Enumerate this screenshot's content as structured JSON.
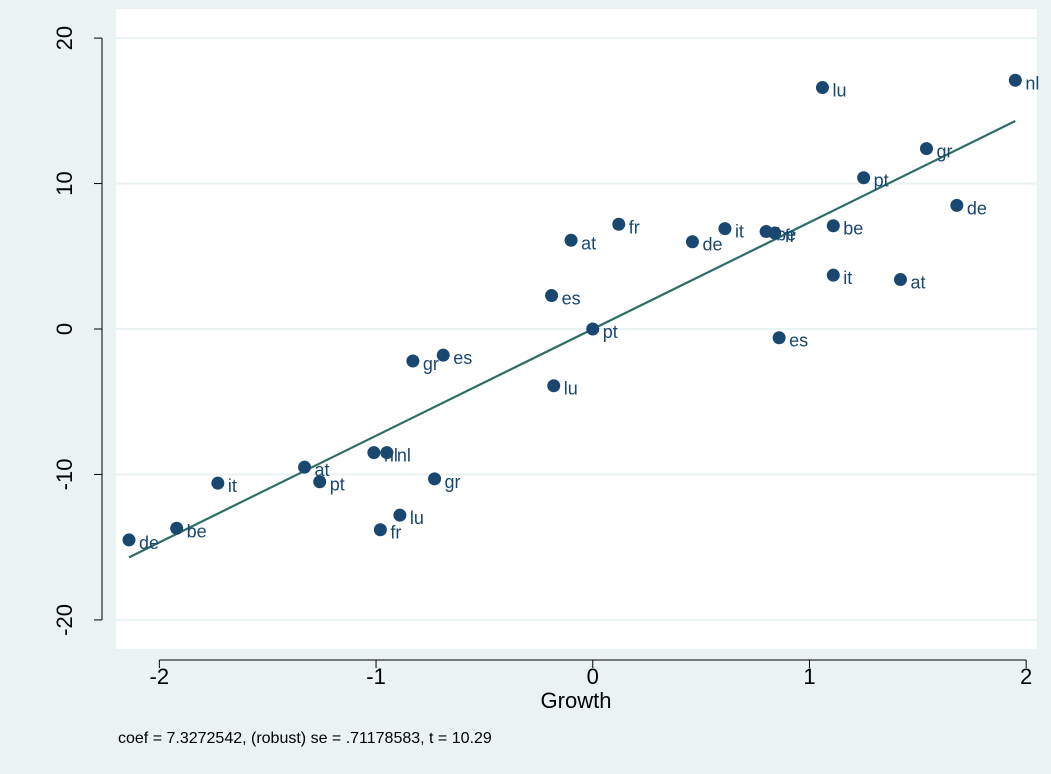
{
  "chart_data": {
    "type": "scatter",
    "title": "",
    "xlabel": "Growth",
    "ylabel": "",
    "xlim": [
      -2.2,
      2.05
    ],
    "ylim": [
      -22,
      22
    ],
    "xticks": [
      -2,
      -1,
      0,
      1,
      2
    ],
    "xtick_labels": [
      "-2",
      "-1",
      "0",
      "1",
      "2"
    ],
    "yticks": [
      -20,
      -10,
      0,
      10,
      20
    ],
    "ytick_labels": [
      "-20",
      "-10",
      "0",
      "10",
      "20"
    ],
    "grid": "horizontal",
    "legend": "none",
    "note": "coef = 7.3272542, (robust) se = .71178583, t = 10.29",
    "colors": {
      "background": "#eaf2f3",
      "plot_area": "#ffffff",
      "grid": "#eaf2f3",
      "marker": "#1a476f",
      "fit_line": "#2d6d66",
      "text": "#000000"
    },
    "points": [
      {
        "label": "de",
        "x": -2.14,
        "y": -14.5
      },
      {
        "label": "be",
        "x": -1.92,
        "y": -13.7
      },
      {
        "label": "it",
        "x": -1.73,
        "y": -10.6
      },
      {
        "label": "at",
        "x": -1.33,
        "y": -9.5
      },
      {
        "label": "pt",
        "x": -1.26,
        "y": -10.5
      },
      {
        "label": "nl",
        "x": -1.01,
        "y": -8.5
      },
      {
        "label": "nl",
        "x": -0.95,
        "y": -8.5
      },
      {
        "label": "lu",
        "x": -0.89,
        "y": -12.8
      },
      {
        "label": "fr",
        "x": -0.98,
        "y": -13.8
      },
      {
        "label": "gr",
        "x": -0.83,
        "y": -2.2
      },
      {
        "label": "es",
        "x": -0.69,
        "y": -1.8
      },
      {
        "label": "gr",
        "x": -0.73,
        "y": -10.3
      },
      {
        "label": "lu",
        "x": -0.18,
        "y": -3.9
      },
      {
        "label": "es",
        "x": -0.19,
        "y": 2.3
      },
      {
        "label": "at",
        "x": -0.1,
        "y": 6.1
      },
      {
        "label": "pt",
        "x": 0.0,
        "y": 0.0
      },
      {
        "label": "fr",
        "x": 0.12,
        "y": 7.2
      },
      {
        "label": "de",
        "x": 0.46,
        "y": 6.0
      },
      {
        "label": "it",
        "x": 0.61,
        "y": 6.9
      },
      {
        "label": "be",
        "x": 0.8,
        "y": 6.7
      },
      {
        "label": "fr",
        "x": 0.84,
        "y": 6.6
      },
      {
        "label": "es",
        "x": 0.86,
        "y": -0.6
      },
      {
        "label": "lu",
        "x": 1.06,
        "y": 16.6
      },
      {
        "label": "be",
        "x": 1.11,
        "y": 7.1
      },
      {
        "label": "it",
        "x": 1.11,
        "y": 3.7
      },
      {
        "label": "pt",
        "x": 1.25,
        "y": 10.4
      },
      {
        "label": "at",
        "x": 1.42,
        "y": 3.4
      },
      {
        "label": "gr",
        "x": 1.54,
        "y": 12.4
      },
      {
        "label": "de",
        "x": 1.68,
        "y": 8.5
      },
      {
        "label": "nl",
        "x": 1.95,
        "y": 17.1
      }
    ],
    "fit_line": {
      "x": [
        -2.14,
        1.95
      ],
      "y": [
        -15.7,
        14.3
      ]
    }
  }
}
